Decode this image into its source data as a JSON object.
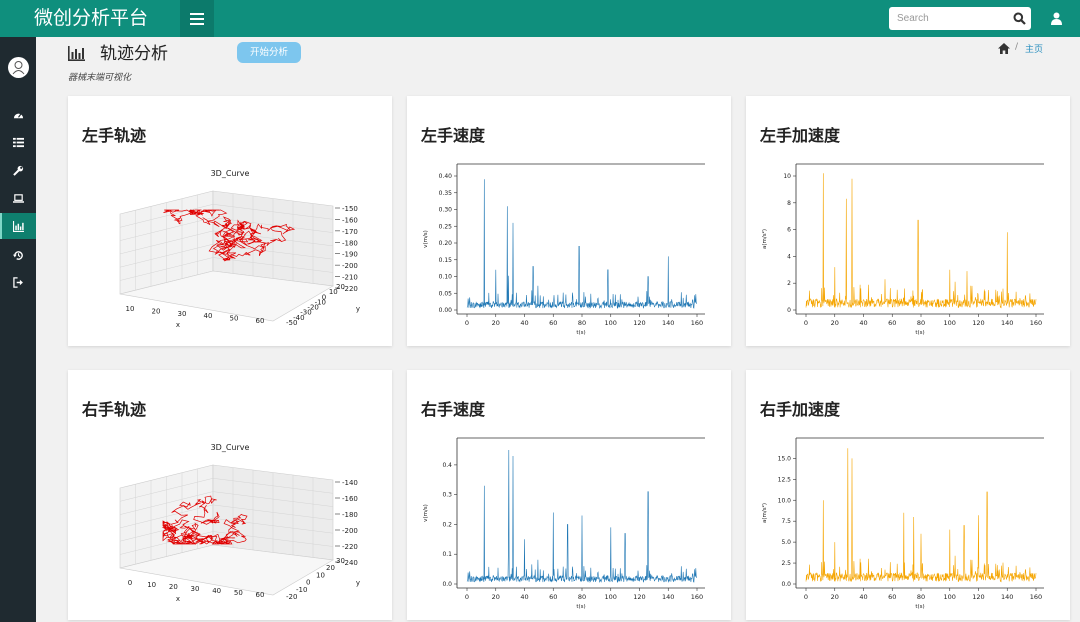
{
  "header": {
    "brand": "微创分析平台",
    "search_placeholder": "Search",
    "accent": "#0f8f7d"
  },
  "sidebar": {
    "items": [
      "dashboard-icon",
      "list-icon",
      "wrench-icon",
      "laptop-icon",
      "bar-chart-icon",
      "history-icon",
      "sign-out-icon"
    ],
    "active_index": 4
  },
  "page": {
    "title": "轨迹分析",
    "start_button": "开始分析",
    "subtitle": "器械末端可视化",
    "breadcrumb_home": "主页"
  },
  "cards": {
    "left_track": {
      "title": "左手轨迹"
    },
    "left_speed": {
      "title": "左手速度"
    },
    "left_accel": {
      "title": "左手加速度"
    },
    "right_track": {
      "title": "右手轨迹"
    },
    "right_speed": {
      "title": "右手速度"
    },
    "right_accel": {
      "title": "右手加速度"
    }
  },
  "chart_data": [
    {
      "id": "left_track",
      "type": "scatter",
      "title": "3D_Curve",
      "xlabel": "x",
      "ylabel": "y",
      "x_ticks": [
        "10",
        "20",
        "30",
        "40",
        "50",
        "60"
      ],
      "y_ticks": [
        "-50",
        "-40",
        "-30",
        "-20",
        "-10",
        "0",
        "10",
        "20"
      ],
      "z_ticks": [
        "-150",
        "-160",
        "-170",
        "-180",
        "-190",
        "-200",
        "-210",
        "-220"
      ],
      "color": "#e00000"
    },
    {
      "id": "left_speed",
      "type": "line",
      "xlabel": "t(s)",
      "ylabel": "v(m/s)",
      "xlim": [
        0,
        160
      ],
      "ylim": [
        0,
        0.4
      ],
      "x_ticks": [
        0,
        20,
        40,
        60,
        80,
        100,
        120,
        140,
        160
      ],
      "y_ticks": [
        "0.00",
        "0.05",
        "0.10",
        "0.15",
        "0.20",
        "0.25",
        "0.30",
        "0.35",
        "0.40"
      ],
      "color": "#1f77b4",
      "series": [
        {
          "peaks": [
            [
              12,
              0.39
            ],
            [
              28,
              0.31
            ],
            [
              32,
              0.26
            ],
            [
              20,
              0.12
            ],
            [
              78,
              0.19
            ],
            [
              140,
              0.16
            ],
            [
              98,
              0.12
            ],
            [
              126,
              0.1
            ],
            [
              46,
              0.13
            ]
          ]
        }
      ]
    },
    {
      "id": "left_accel",
      "type": "line",
      "xlabel": "t(s)",
      "ylabel": "a(m/s²)",
      "xlim": [
        0,
        160
      ],
      "ylim": [
        0,
        10
      ],
      "x_ticks": [
        0,
        20,
        40,
        60,
        80,
        100,
        120,
        140,
        160
      ],
      "y_ticks": [
        "0",
        "2",
        "4",
        "6",
        "8",
        "10"
      ],
      "color": "#f5a500",
      "series": [
        {
          "peaks": [
            [
              12,
              10.2
            ],
            [
              28,
              8.3
            ],
            [
              32,
              9.8
            ],
            [
              78,
              6.7
            ],
            [
              140,
              5.8
            ],
            [
              100,
              3.0
            ],
            [
              112,
              2.9
            ],
            [
              20,
              3.2
            ],
            [
              55,
              2.3
            ]
          ]
        }
      ]
    },
    {
      "id": "right_track",
      "type": "scatter",
      "title": "3D_Curve",
      "xlabel": "x",
      "ylabel": "y",
      "x_ticks": [
        "0",
        "10",
        "20",
        "30",
        "40",
        "50",
        "60"
      ],
      "y_ticks": [
        "-20",
        "-10",
        "0",
        "10",
        "20",
        "30"
      ],
      "z_ticks": [
        "-140",
        "-160",
        "-180",
        "-200",
        "-220",
        "-240"
      ],
      "color": "#e00000"
    },
    {
      "id": "right_speed",
      "type": "line",
      "xlabel": "t(s)",
      "ylabel": "v(m/s)",
      "xlim": [
        0,
        160
      ],
      "ylim": [
        0,
        0.45
      ],
      "x_ticks": [
        0,
        20,
        40,
        60,
        80,
        100,
        120,
        140,
        160
      ],
      "y_ticks": [
        "0.0",
        "0.1",
        "0.2",
        "0.3",
        "0.4"
      ],
      "color": "#1f77b4",
      "series": [
        {
          "peaks": [
            [
              29,
              0.45
            ],
            [
              32,
              0.43
            ],
            [
              12,
              0.33
            ],
            [
              126,
              0.31
            ],
            [
              60,
              0.24
            ],
            [
              80,
              0.23
            ],
            [
              70,
              0.2
            ],
            [
              100,
              0.19
            ],
            [
              110,
              0.17
            ],
            [
              40,
              0.15
            ]
          ]
        }
      ]
    },
    {
      "id": "right_accel",
      "type": "line",
      "xlabel": "t(s)",
      "ylabel": "a(m/s²)",
      "xlim": [
        0,
        160
      ],
      "ylim": [
        0,
        16
      ],
      "x_ticks": [
        0,
        20,
        40,
        60,
        80,
        100,
        120,
        140,
        160
      ],
      "y_ticks": [
        "0.0",
        "2.5",
        "5.0",
        "7.5",
        "10.0",
        "12.5",
        "15.0"
      ],
      "color": "#f5a500",
      "series": [
        {
          "peaks": [
            [
              29,
              16.2
            ],
            [
              32,
              15.0
            ],
            [
              12,
              10.0
            ],
            [
              126,
              11.0
            ],
            [
              68,
              8.5
            ],
            [
              75,
              8.0
            ],
            [
              80,
              6.0
            ],
            [
              100,
              6.5
            ],
            [
              110,
              7.0
            ],
            [
              120,
              8.2
            ],
            [
              20,
              5.0
            ]
          ]
        }
      ]
    }
  ]
}
